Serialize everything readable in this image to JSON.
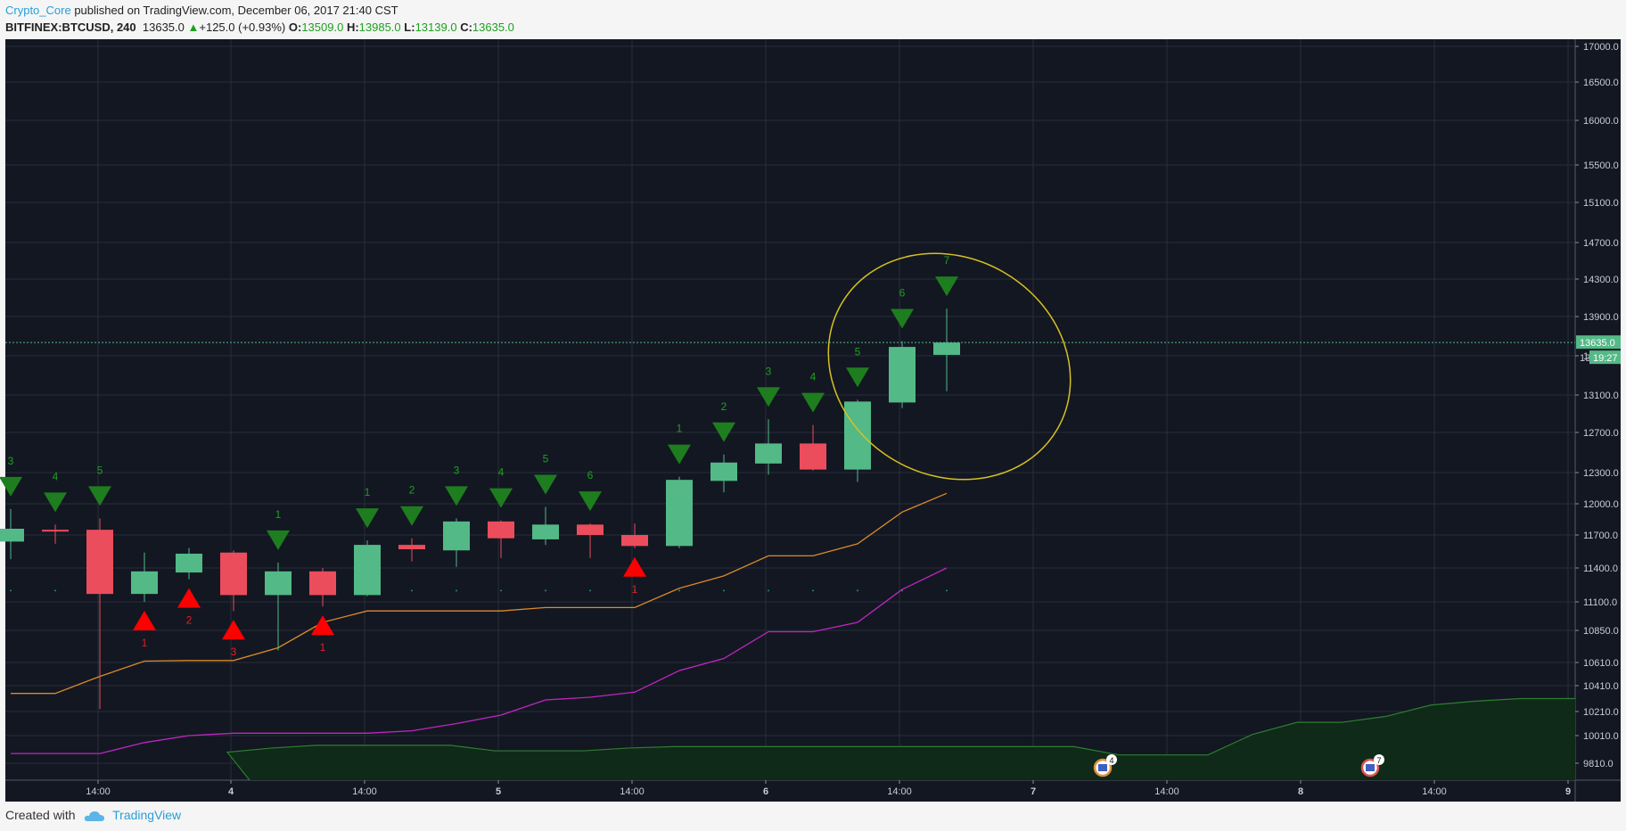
{
  "header": {
    "author": "Crypto_Core",
    "published": " published on TradingView.com, December 06, 2017 21:40 CST",
    "symbol": "BITFINEX:BTCUSD, 240",
    "last": "13635.0",
    "change": "+125.0 (+0.93%)",
    "o_label": "O:",
    "o_value": "13509.0",
    "h_label": "H:",
    "h_value": "13985.0",
    "l_label": "L:",
    "l_value": "13139.0",
    "c_label": "C:",
    "c_value": "13635.0"
  },
  "footer": {
    "created_with": "Created with",
    "brand": "TradingView",
    "brand_icon": "cloud-logo-icon"
  },
  "colors": {
    "background": "#131722",
    "grid": "#2a2e39",
    "up": "#53b987",
    "down": "#eb4d5c",
    "sell_marker": "#1e7d1e",
    "buy_marker": "#ff0000",
    "orange_line": "#d98b2a",
    "magenta_line": "#c026c0",
    "volume_line": "#2e7d32",
    "ellipse": "#d6c21f",
    "price_line": "#53b987"
  },
  "chart_data": {
    "type": "candlestick",
    "ylim": [
      9700,
      17100
    ],
    "y_ticks": [
      "17000.0",
      "16500.0",
      "16000.0",
      "15500.0",
      "15100.0",
      "14700.0",
      "14300.0",
      "13900.0",
      "13500.0",
      "13100.0",
      "12700.0",
      "12300.0",
      "12000.0",
      "11700.0",
      "11400.0",
      "11100.0",
      "10850.0",
      "10610.0",
      "10410.0",
      "10210.0",
      "10010.0",
      "9810.0"
    ],
    "x_ticks": [
      "14:00",
      "4",
      "14:00",
      "5",
      "14:00",
      "6",
      "14:00",
      "7",
      "14:00",
      "8",
      "14:00",
      "9"
    ],
    "last_price_label": "13635.0",
    "countdown_label": "19:27",
    "hidden_axis_label": "13",
    "candles": [
      {
        "o": 11640,
        "h": 11950,
        "l": 11480,
        "c": 11760
      },
      {
        "o": 11750,
        "h": 11800,
        "l": 11620,
        "c": 11740
      },
      {
        "o": 11750,
        "h": 11860,
        "l": 10230,
        "c": 11170
      },
      {
        "o": 11170,
        "h": 11540,
        "l": 11100,
        "c": 11370
      },
      {
        "o": 11360,
        "h": 11580,
        "l": 11300,
        "c": 11530
      },
      {
        "o": 11540,
        "h": 11560,
        "l": 11020,
        "c": 11160
      },
      {
        "o": 11160,
        "h": 11450,
        "l": 10700,
        "c": 11370
      },
      {
        "o": 11370,
        "h": 11400,
        "l": 11060,
        "c": 11160
      },
      {
        "o": 11160,
        "h": 11650,
        "l": 11150,
        "c": 11610
      },
      {
        "o": 11610,
        "h": 11670,
        "l": 11460,
        "c": 11570
      },
      {
        "o": 11560,
        "h": 11860,
        "l": 11410,
        "c": 11830
      },
      {
        "o": 11830,
        "h": 11840,
        "l": 11490,
        "c": 11670
      },
      {
        "o": 11660,
        "h": 11970,
        "l": 11610,
        "c": 11800
      },
      {
        "o": 11800,
        "h": 11810,
        "l": 11490,
        "c": 11700
      },
      {
        "o": 11700,
        "h": 11810,
        "l": 11580,
        "c": 11600
      },
      {
        "o": 11600,
        "h": 12260,
        "l": 11580,
        "c": 12230
      },
      {
        "o": 12220,
        "h": 12480,
        "l": 12110,
        "c": 12400
      },
      {
        "o": 12390,
        "h": 12840,
        "l": 12280,
        "c": 12590
      },
      {
        "o": 12590,
        "h": 12780,
        "l": 12320,
        "c": 12330
      },
      {
        "o": 12330,
        "h": 13050,
        "l": 12210,
        "c": 13030
      },
      {
        "o": 13020,
        "h": 13650,
        "l": 12960,
        "c": 13590
      },
      {
        "o": 13509,
        "h": 13985,
        "l": 13139,
        "c": 13635
      }
    ],
    "sell_setup": [
      {
        "i": 0,
        "label": "3"
      },
      {
        "i": 1,
        "label": "4"
      },
      {
        "i": 2,
        "label": "5"
      },
      {
        "i": 6,
        "label": "1"
      },
      {
        "i": 8,
        "label": "1"
      },
      {
        "i": 9,
        "label": "2"
      },
      {
        "i": 10,
        "label": "3"
      },
      {
        "i": 11,
        "label": "4"
      },
      {
        "i": 12,
        "label": "5"
      },
      {
        "i": 13,
        "label": "6"
      },
      {
        "i": 15,
        "label": "1"
      },
      {
        "i": 16,
        "label": "2"
      },
      {
        "i": 17,
        "label": "3"
      },
      {
        "i": 18,
        "label": "4"
      },
      {
        "i": 19,
        "label": "5"
      },
      {
        "i": 20,
        "label": "6"
      },
      {
        "i": 21,
        "label": "7"
      }
    ],
    "buy_setup": [
      {
        "i": 3,
        "label": "1"
      },
      {
        "i": 4,
        "label": "2"
      },
      {
        "i": 5,
        "label": "3"
      },
      {
        "i": 7,
        "label": "1"
      },
      {
        "i": 14,
        "label": "1"
      }
    ],
    "orange_line": [
      10350,
      10350,
      10490,
      10620,
      10625,
      10625,
      10720,
      10920,
      11020,
      11020,
      11020,
      11020,
      11050,
      11050,
      11050,
      11220,
      11330,
      11510,
      11510,
      11620,
      11920,
      12100
    ],
    "magenta_line": [
      9880,
      9880,
      9880,
      9960,
      10010,
      10030,
      10030,
      10030,
      10030,
      10050,
      10110,
      10180,
      10300,
      10320,
      10360,
      10540,
      10640,
      10840,
      10840,
      10920,
      11210,
      11400
    ],
    "volume_line": [
      9660,
      9660,
      9660,
      9660,
      9660,
      9660,
      9890,
      9920,
      9940,
      9940,
      9940,
      9940,
      9900,
      9900,
      9900,
      9920,
      9930,
      9930,
      9930,
      9930,
      9930,
      9930,
      9930,
      9930,
      9930,
      9930,
      9870,
      9870,
      9870,
      10020,
      10120,
      10120,
      10170,
      10260,
      10290,
      10310
    ],
    "event_badges": [
      {
        "i": 24.5,
        "count": "4",
        "color": "#e0903a"
      },
      {
        "i": 30.5,
        "count": "7",
        "color": "#e05050"
      }
    ]
  }
}
